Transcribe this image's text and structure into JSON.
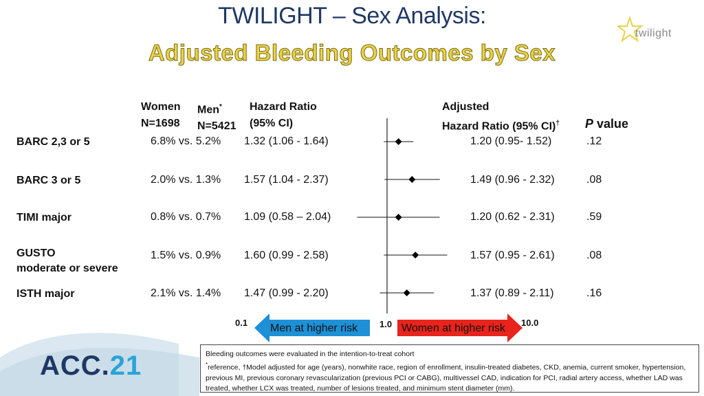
{
  "title": "TWILIGHT – Sex Analysis:",
  "subtitle": "Adjusted Bleeding Outcomes by Sex",
  "logo_text": "twilight",
  "headers": {
    "women": "Women",
    "women_n": "N=1698",
    "men": "Men",
    "men_sup": "*",
    "men_n": "N=5421",
    "hr": "Hazard Ratio",
    "hr_ci": "(95% CI)",
    "adj": "Adjusted",
    "adj_hr": "Hazard Ratio (95% CI)",
    "adj_sup": "†",
    "p_italic": "P",
    "p_rest": " value"
  },
  "rows": [
    {
      "label": "BARC 2,3 or 5",
      "label2": "",
      "rates": "6.8% vs. 5.2%",
      "hr": "1.32 (1.06 - 1.64)",
      "adj_hr": "1.20 (0.95- 1.52)",
      "p": ".12"
    },
    {
      "label": "BARC 3 or 5",
      "label2": "",
      "rates": "2.0% vs. 1.3%",
      "hr": "1.57 (1.04 - 2.37)",
      "adj_hr": "1.49 (0.96 - 2.32)",
      "p": ".08"
    },
    {
      "label": "TIMI major",
      "label2": "",
      "rates": "0.8% vs.  0.7%",
      "hr": "1.09 (0.58 – 2.04)",
      "adj_hr": "1.20 (0.62 - 2.31)",
      "p": ".59"
    },
    {
      "label": "GUSTO",
      "label2": "moderate or severe",
      "rates": "1.5% vs. 0.9%",
      "hr": "1.60 (0.99 - 2.58)",
      "adj_hr": "1.57 (0.95 - 2.61)",
      "p": ".08"
    },
    {
      "label": "ISTH major",
      "label2": "",
      "rates": "2.1% vs. 1.4%",
      "hr": "1.47 (0.99 - 2.20)",
      "adj_hr": "1.37 (0.89 - 2.11)",
      "p": ".16"
    }
  ],
  "axis": {
    "tick_low": "0.1",
    "tick_mid": "1.0",
    "tick_high": "10.0"
  },
  "arrows": {
    "left": "Men at higher risk",
    "right": "Women at higher risk",
    "left_color": "#1e90d6",
    "right_color": "#e8241c"
  },
  "footnote": {
    "line1": "Bleeding outcomes were evaluated in the intention-to-treat cohort",
    "line2": "reference, †Model adjusted for age (years), nonwhite race, region of enrollment, insulin-treated diabetes, CKD, anemia, current smoker, hypertension, previous MI, previous coronary revascularization (previous PCI or CABG), multivessel CAD, indication for PCI, radial artery access, whether LAD was treated, whether LCX was treated, number of lesions treated, and minimum stent diameter (mm).",
    "line2_sup": "*"
  },
  "acc_logo": {
    "part1": "ACC.",
    "part2": "21"
  },
  "chart_data": {
    "type": "forest",
    "x_scale": "log",
    "xlim": [
      0.1,
      10.0
    ],
    "reference": 1.0,
    "points": [
      {
        "name": "BARC 2,3 or 5",
        "hr": 1.2,
        "lo": 0.95,
        "hi": 1.52
      },
      {
        "name": "BARC 3 or 5",
        "hr": 1.49,
        "lo": 0.96,
        "hi": 2.32
      },
      {
        "name": "TIMI major",
        "hr": 1.2,
        "lo": 0.62,
        "hi": 2.31
      },
      {
        "name": "GUSTO moderate or severe",
        "hr": 1.57,
        "lo": 0.95,
        "hi": 2.61
      },
      {
        "name": "ISTH major",
        "hr": 1.37,
        "lo": 0.89,
        "hi": 2.11
      }
    ]
  }
}
